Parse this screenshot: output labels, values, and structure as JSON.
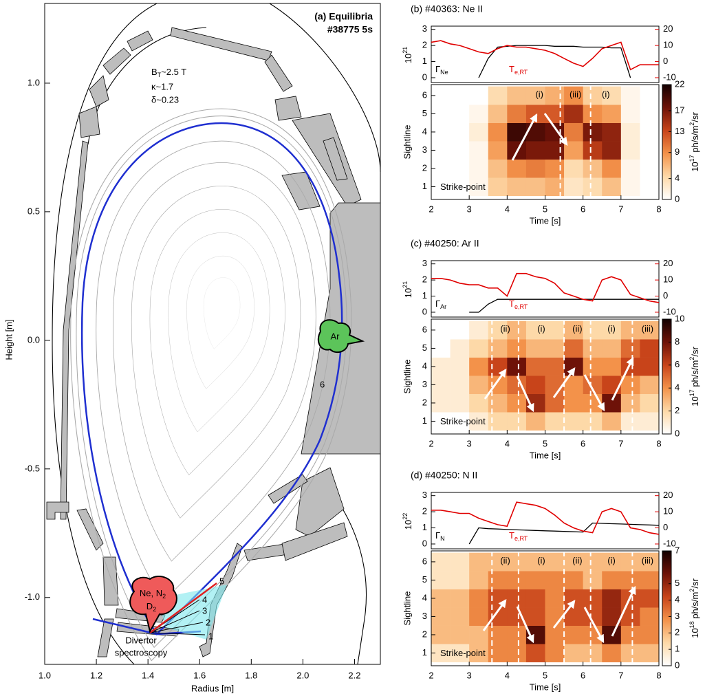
{
  "chart_data": [
    {
      "type": "equilibrium",
      "title": "(a) Equilibria",
      "subtitle": "#38775 5s",
      "subtitle_color": "#2233cc",
      "params": [
        {
          "text": "B",
          "sub": "T",
          "rest": "~2.5 T"
        },
        {
          "text": "κ~1.7"
        },
        {
          "text": "δ~0.23"
        }
      ],
      "xlabel": "Radius [m]",
      "ylabel": "Height [m]",
      "xlim": [
        1.0,
        2.3
      ],
      "ylim": [
        -1.26,
        1.31
      ],
      "xticks": [
        {
          "value": 1,
          "label": "1.0"
        },
        1.2,
        1.4,
        1.6,
        1.8,
        {
          "value": 2,
          "label": "2.0"
        },
        2.2
      ],
      "yticks": [
        {
          "value": -1,
          "label": "-1.0"
        },
        -0.5,
        {
          "value": 0,
          "label": "0.0"
        },
        0.5,
        {
          "value": 1,
          "label": "1.0"
        }
      ],
      "sightlines": [
        "1",
        "2",
        "3",
        "4",
        "5",
        "6"
      ],
      "valves": [
        {
          "text": "Ar",
          "color": "#5cc45a"
        },
        {
          "lines": [
            {
              "text": "Ne, N",
              "sub": "2"
            },
            {
              "text": "D",
              "sub": "2"
            }
          ],
          "color": "#ef5a5a"
        }
      ],
      "annotation": [
        "Divertor",
        "spectroscopy"
      ]
    },
    {
      "type": "line",
      "title": "(b) #40363: Ne II",
      "x": [
        2,
        2.25,
        2.5,
        2.75,
        3,
        3.25,
        3.5,
        3.75,
        4,
        4.25,
        4.5,
        4.75,
        5,
        5.25,
        5.5,
        5.75,
        6,
        6.25,
        6.5,
        6.75,
        7,
        7.25,
        7.5,
        7.75,
        8
      ],
      "xlim": [
        2,
        8
      ],
      "ylim": [
        -0.3,
        3.2
      ],
      "yticks": [
        0,
        1,
        2,
        3
      ],
      "y_exponent": {
        "base": "10",
        "exp": "21"
      },
      "y2lim": [
        -13,
        22
      ],
      "y2ticks": [
        -10,
        0,
        10,
        20
      ],
      "series": [
        {
          "name": "Γ",
          "name_sub": "Ne",
          "color": "#000000",
          "values": [
            null,
            null,
            null,
            null,
            null,
            0,
            1.2,
            1.9,
            1.95,
            2.0,
            2.0,
            2.0,
            2.0,
            1.95,
            1.95,
            1.95,
            1.9,
            1.9,
            1.9,
            1.85,
            1.85,
            0,
            null,
            null,
            null
          ]
        },
        {
          "name": "T",
          "name_sub": "e,RT",
          "color": "#e00000",
          "axis": "y2",
          "values": [
            12,
            13,
            11,
            10,
            8,
            6,
            5,
            8,
            10,
            9,
            9,
            8,
            7,
            5,
            2,
            -1,
            -3,
            2,
            8,
            10,
            12,
            -5,
            -2,
            -2,
            -2
          ]
        }
      ]
    },
    {
      "type": "heatmap",
      "x": [
        2,
        2.5,
        3,
        3.5,
        4,
        4.5,
        5,
        5.5,
        6,
        6.5,
        7,
        7.5,
        8
      ],
      "y": [
        1,
        2,
        3,
        4,
        5,
        6
      ],
      "xlim": [
        2,
        8
      ],
      "ylim": [
        0.3,
        6.6
      ],
      "xticks": [
        2,
        3,
        4,
        5,
        6,
        7,
        8
      ],
      "xlabel": "Time [s]",
      "ylabel": "Sightline",
      "values": [
        [
          0,
          0,
          1,
          5,
          6,
          6,
          7,
          3,
          4,
          6,
          1,
          0
        ],
        [
          0,
          0,
          1,
          6,
          9,
          10,
          9,
          4,
          6,
          9,
          1,
          0
        ],
        [
          0,
          0,
          1,
          8,
          18,
          17,
          17,
          8,
          14,
          16,
          2,
          0
        ],
        [
          0,
          0,
          2,
          9,
          20,
          19,
          18,
          10,
          17,
          16,
          2,
          0
        ],
        [
          0,
          0,
          1,
          6,
          10,
          12,
          12,
          15,
          9,
          8,
          1,
          0
        ],
        [
          0,
          0,
          0,
          4,
          6,
          6,
          7,
          9,
          5,
          4,
          1,
          0
        ]
      ],
      "zlim": [
        0,
        22
      ],
      "zticks": [
        0,
        4,
        9,
        13,
        17,
        22
      ],
      "zlabel": {
        "base": "10",
        "exp": "17",
        "unit": " ph/s/m",
        "unit_exp": "2",
        "unit_end": "/sr"
      },
      "colormap": [
        "#ffffff",
        "#fdd9a8",
        "#f3924a",
        "#c8441a",
        "#6e1208",
        "#140000"
      ],
      "row_label": "Strike-point",
      "phase_boundaries": [
        5.4,
        6.2
      ],
      "phases": [
        {
          "label": "(i)",
          "x": 4.85
        },
        {
          "label": "(iii)",
          "x": 5.8
        },
        {
          "label": "(i)",
          "x": 6.6
        }
      ]
    },
    {
      "type": "line",
      "title": "(c) #40250: Ar II",
      "x": [
        2,
        2.25,
        2.5,
        2.75,
        3,
        3.25,
        3.5,
        3.75,
        4,
        4.25,
        4.5,
        4.75,
        5,
        5.25,
        5.5,
        5.75,
        6,
        6.25,
        6.5,
        6.75,
        7,
        7.25,
        7.5,
        7.75,
        8
      ],
      "xlim": [
        2,
        8
      ],
      "ylim": [
        -0.3,
        3.2
      ],
      "yticks": [
        0,
        1,
        2,
        3
      ],
      "y_exponent": {
        "base": "10",
        "exp": "21"
      },
      "y2lim": [
        -13,
        22
      ],
      "y2ticks": [
        -10,
        0,
        10,
        20
      ],
      "series": [
        {
          "name": "Γ",
          "name_sub": "Ar",
          "color": "#000000",
          "values": [
            null,
            null,
            null,
            null,
            0,
            0,
            0.5,
            0.8,
            0.8,
            0.8,
            0.8,
            0.8,
            0.8,
            0.8,
            0.8,
            0.8,
            0.8,
            0.8,
            0.8,
            0.8,
            0.8,
            0.8,
            0.8,
            0.8,
            0.8
          ]
        },
        {
          "name": "T",
          "name_sub": "e,RT",
          "color": "#e00000",
          "axis": "y2",
          "values": [
            11,
            11,
            10,
            8,
            7,
            7,
            5,
            5,
            0,
            14,
            14,
            12,
            11,
            8,
            2,
            0,
            -2,
            -3,
            10,
            12,
            10,
            1,
            -1,
            -3,
            -4
          ]
        }
      ]
    },
    {
      "type": "heatmap",
      "x": [
        2,
        2.5,
        3,
        3.5,
        4,
        4.5,
        5,
        5.5,
        6,
        6.5,
        7,
        7.5,
        8
      ],
      "y": [
        1,
        2,
        3,
        4,
        5,
        6
      ],
      "xlim": [
        2,
        8
      ],
      "ylim": [
        0.3,
        6.6
      ],
      "xticks": [
        2,
        3,
        4,
        5,
        6,
        7,
        8
      ],
      "xlabel": "Time [s]",
      "ylabel": "Sightline",
      "values": [
        [
          0,
          0,
          1,
          2,
          2,
          3,
          2,
          2,
          2,
          3,
          1,
          1
        ],
        [
          1,
          1,
          2,
          3,
          4,
          7,
          5,
          4,
          4,
          8,
          3,
          2
        ],
        [
          1,
          1,
          3,
          4,
          5,
          6,
          5,
          4,
          5,
          6,
          4,
          3
        ],
        [
          1,
          1,
          4,
          6,
          8,
          5,
          5,
          8,
          4,
          4,
          6,
          6
        ],
        [
          0,
          1,
          2,
          3,
          4,
          3,
          3,
          5,
          3,
          3,
          5,
          6
        ],
        [
          0,
          0,
          1,
          2,
          3,
          2,
          2,
          3,
          2,
          2,
          3,
          3
        ]
      ],
      "zlim": [
        0,
        10
      ],
      "zticks": [
        0,
        2,
        4,
        6,
        8,
        10
      ],
      "zlabel": {
        "base": "10",
        "exp": "17",
        "unit": " ph/s/m",
        "unit_exp": "2",
        "unit_end": "/sr"
      },
      "colormap": [
        "#ffffff",
        "#fdd9a8",
        "#f3924a",
        "#c8441a",
        "#6e1208",
        "#140000"
      ],
      "row_label": "Strike-point",
      "phase_boundaries": [
        3.6,
        4.3,
        5.5,
        6.2,
        7.3
      ],
      "phases": [
        {
          "label": "(ii)",
          "x": 3.95
        },
        {
          "label": "(i)",
          "x": 4.9
        },
        {
          "label": "(ii)",
          "x": 5.85
        },
        {
          "label": "(i)",
          "x": 6.75
        },
        {
          "label": "(iii)",
          "x": 7.7
        }
      ]
    },
    {
      "type": "line",
      "title": "(d) #40250: N II",
      "x": [
        2,
        2.25,
        2.5,
        2.75,
        3,
        3.25,
        3.5,
        3.75,
        4,
        4.25,
        4.5,
        4.75,
        5,
        5.25,
        5.5,
        5.75,
        6,
        6.25,
        6.5,
        6.75,
        7,
        7.25,
        7.5,
        7.75,
        8
      ],
      "xlim": [
        2,
        8
      ],
      "ylim": [
        -0.3,
        3.2
      ],
      "yticks": [
        0,
        1,
        2,
        3
      ],
      "y_exponent": {
        "base": "10",
        "exp": "22"
      },
      "y2lim": [
        -13,
        22
      ],
      "y2ticks": [
        -10,
        0,
        10,
        20
      ],
      "series": [
        {
          "name": "Γ",
          "name_sub": "N",
          "color": "#000000",
          "values": [
            null,
            null,
            null,
            null,
            0,
            1.0,
            0.95,
            0.93,
            0.9,
            0.88,
            0.86,
            0.84,
            0.82,
            0.8,
            0.78,
            0.76,
            0.74,
            1.3,
            1.28,
            1.26,
            1.24,
            1.22,
            1.2,
            1.18,
            1.16
          ]
        },
        {
          "name": "T",
          "name_sub": "e,RT",
          "color": "#e00000",
          "axis": "y2",
          "values": [
            11,
            11,
            10,
            9,
            9,
            6,
            4,
            2,
            1,
            16,
            15,
            14,
            12,
            8,
            3,
            0,
            -2,
            -3,
            10,
            12,
            10,
            0,
            -1,
            -3,
            -4
          ]
        }
      ]
    },
    {
      "type": "heatmap",
      "x": [
        2,
        2.5,
        3,
        3.5,
        4,
        4.5,
        5,
        5.5,
        6,
        6.5,
        7,
        7.5,
        8
      ],
      "y": [
        1,
        2,
        3,
        4,
        5,
        6
      ],
      "xlim": [
        2,
        8
      ],
      "ylim": [
        0.3,
        6.6
      ],
      "xticks": [
        2,
        3,
        4,
        5,
        6,
        7,
        8
      ],
      "xlabel": "Time [s]",
      "ylabel": "Sightline",
      "values": [
        [
          1,
          1,
          2,
          3,
          3,
          4,
          3,
          2,
          2,
          3,
          2,
          2
        ],
        [
          2,
          2,
          2,
          3,
          3,
          6,
          3,
          3,
          3,
          6,
          3,
          3
        ],
        [
          2,
          2,
          3,
          4,
          4,
          4,
          3,
          4,
          4,
          5,
          4,
          3
        ],
        [
          2,
          2,
          3,
          4,
          4,
          4,
          3,
          4,
          4,
          5,
          4,
          4
        ],
        [
          1,
          1,
          2,
          3,
          3,
          3,
          3,
          3,
          2,
          3,
          3,
          3
        ],
        [
          1,
          1,
          2,
          2,
          2,
          2,
          2,
          2,
          2,
          2,
          2,
          2
        ]
      ],
      "zlim": [
        0,
        7
      ],
      "zticks": [
        0,
        1,
        2,
        3,
        4,
        5,
        7
      ],
      "zlabel": {
        "base": "10",
        "exp": "18",
        "unit": " ph/s/m",
        "unit_exp": "2",
        "unit_end": "/sr"
      },
      "colormap": [
        "#ffffff",
        "#fdd9a8",
        "#f3924a",
        "#c8441a",
        "#6e1208",
        "#140000"
      ],
      "row_label": "Strike-point",
      "phase_boundaries": [
        3.6,
        4.3,
        5.5,
        6.2,
        7.3
      ],
      "phases": [
        {
          "label": "(ii)",
          "x": 3.95
        },
        {
          "label": "(i)",
          "x": 4.9
        },
        {
          "label": "(ii)",
          "x": 5.85
        },
        {
          "label": "(i)",
          "x": 6.75
        },
        {
          "label": "(iii)",
          "x": 7.7
        }
      ]
    }
  ]
}
